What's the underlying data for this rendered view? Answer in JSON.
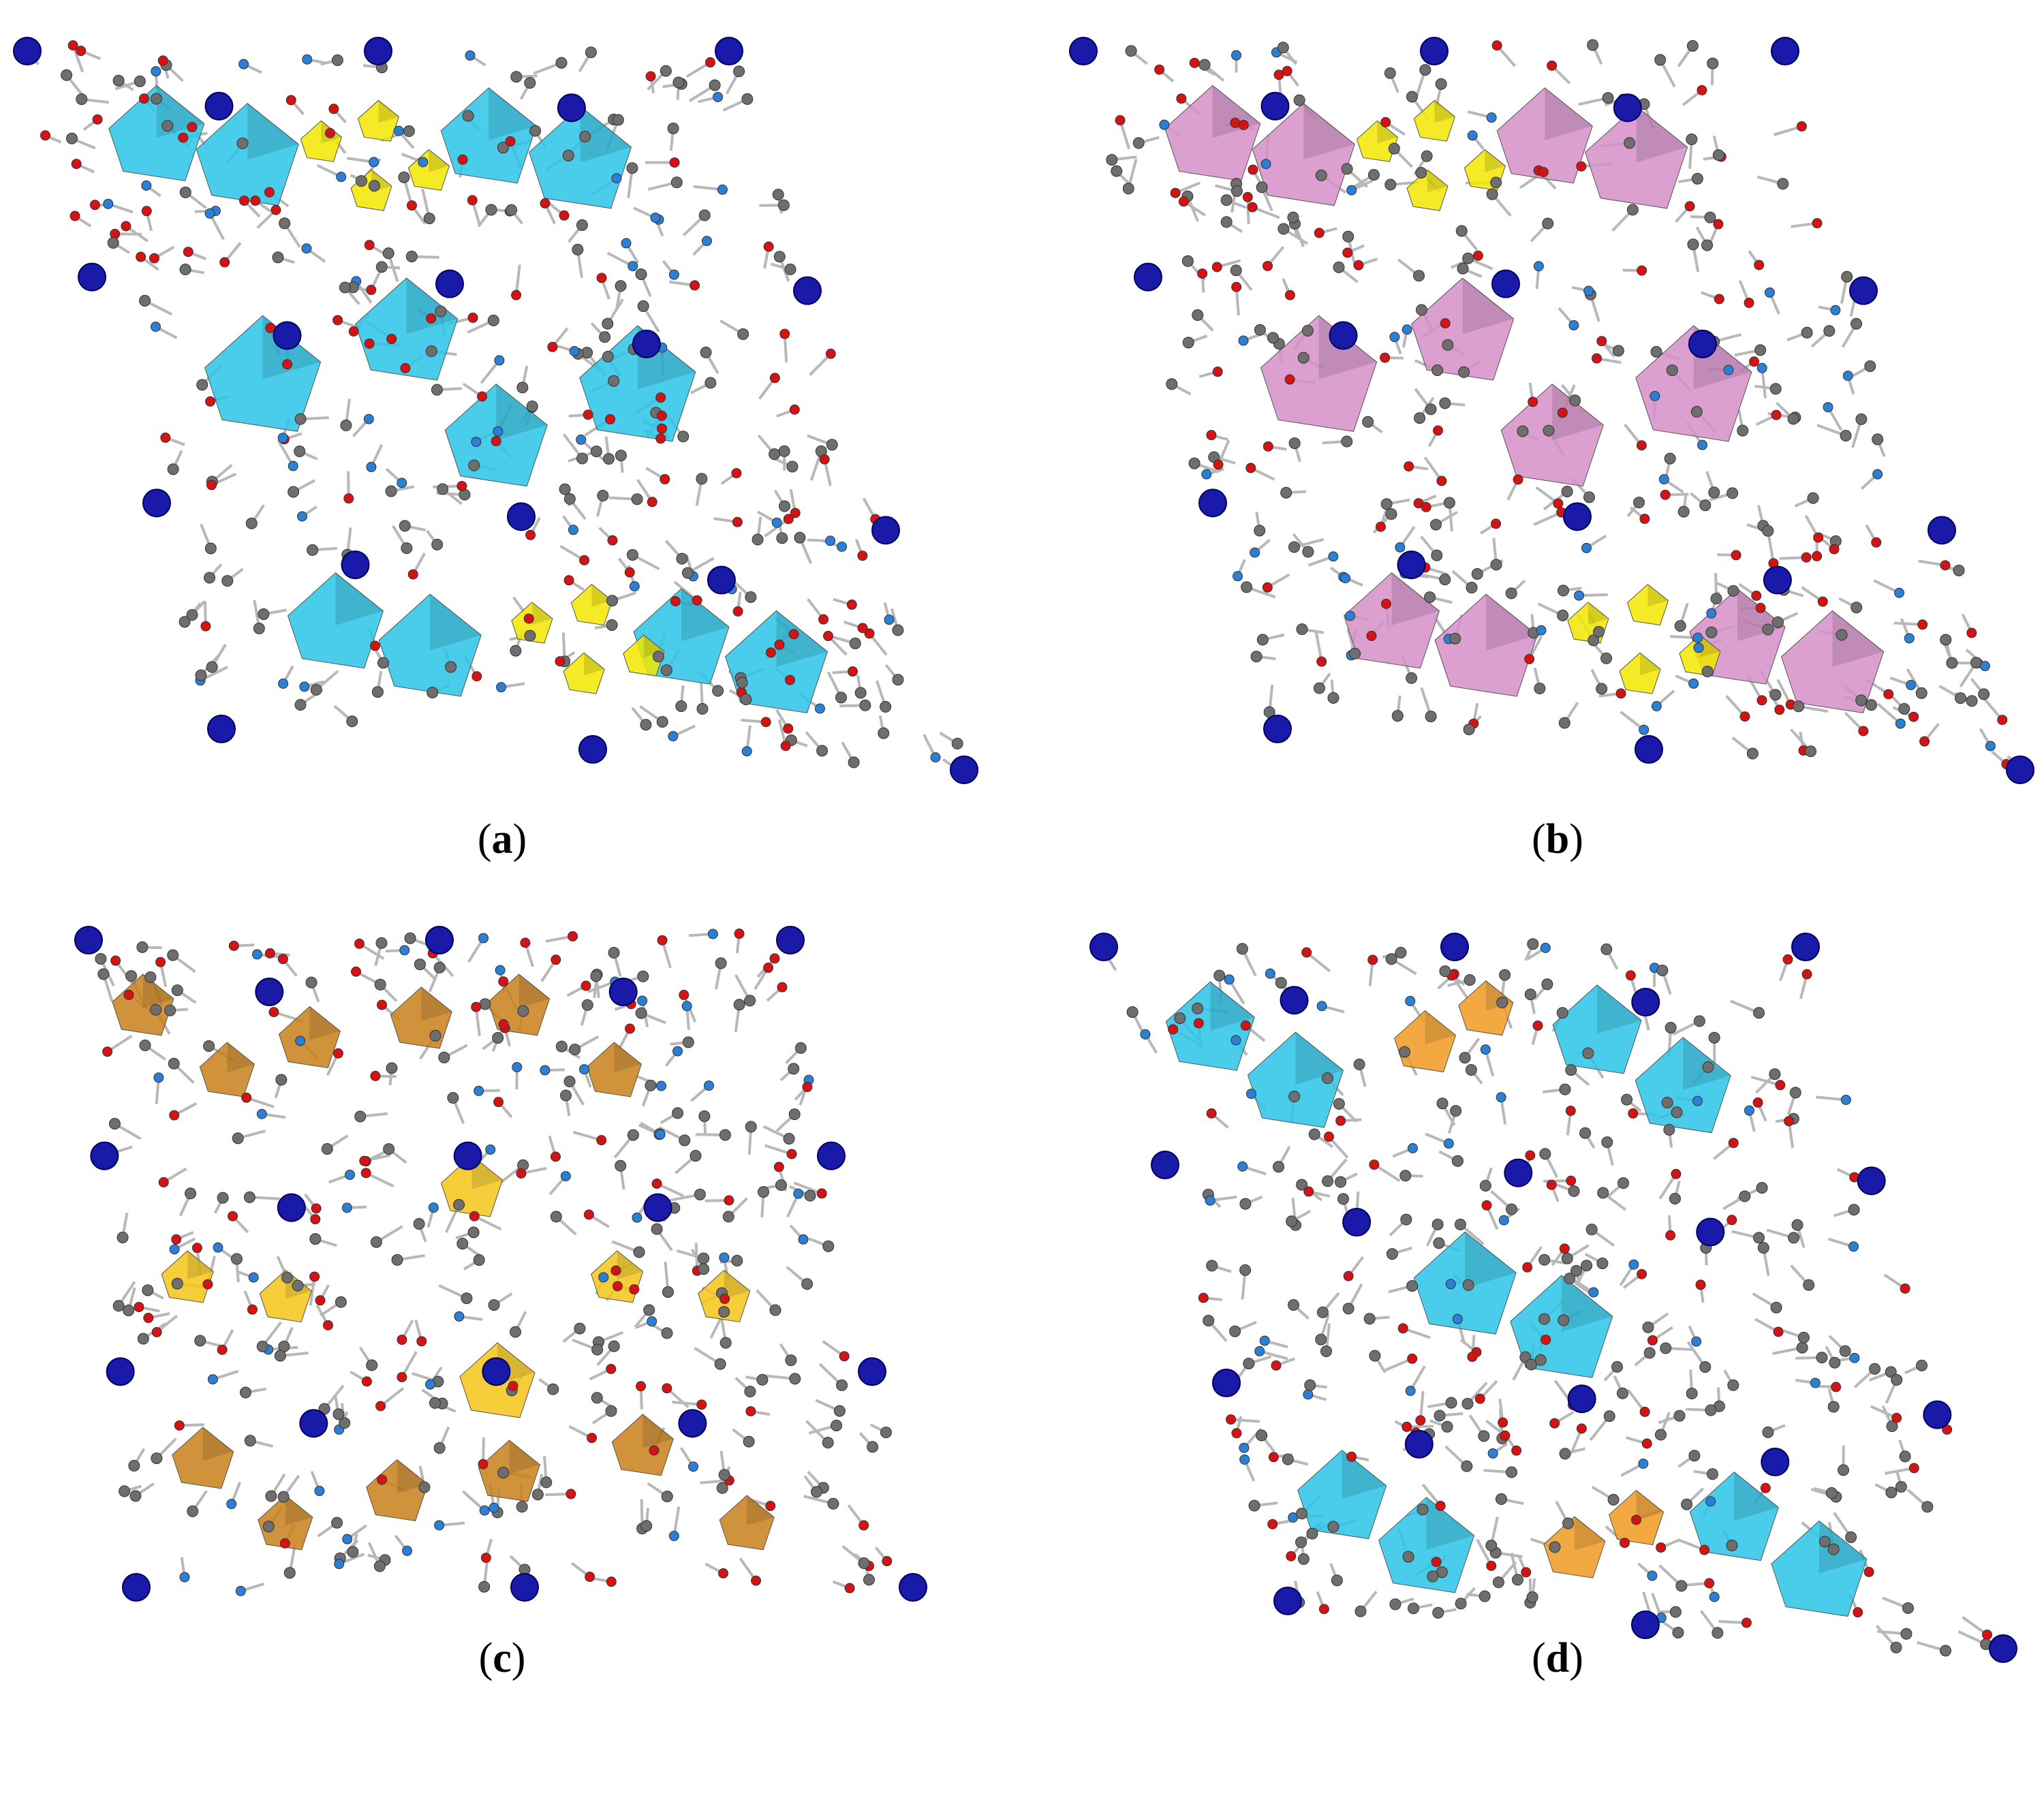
{
  "panels": [
    {
      "label": [
        "(",
        "a",
        ")"
      ]
    },
    {
      "label": [
        "(",
        "b",
        ")"
      ]
    },
    {
      "label": [
        "(",
        "c",
        ")"
      ]
    },
    {
      "label": [
        "(",
        "d",
        ")"
      ]
    }
  ]
}
